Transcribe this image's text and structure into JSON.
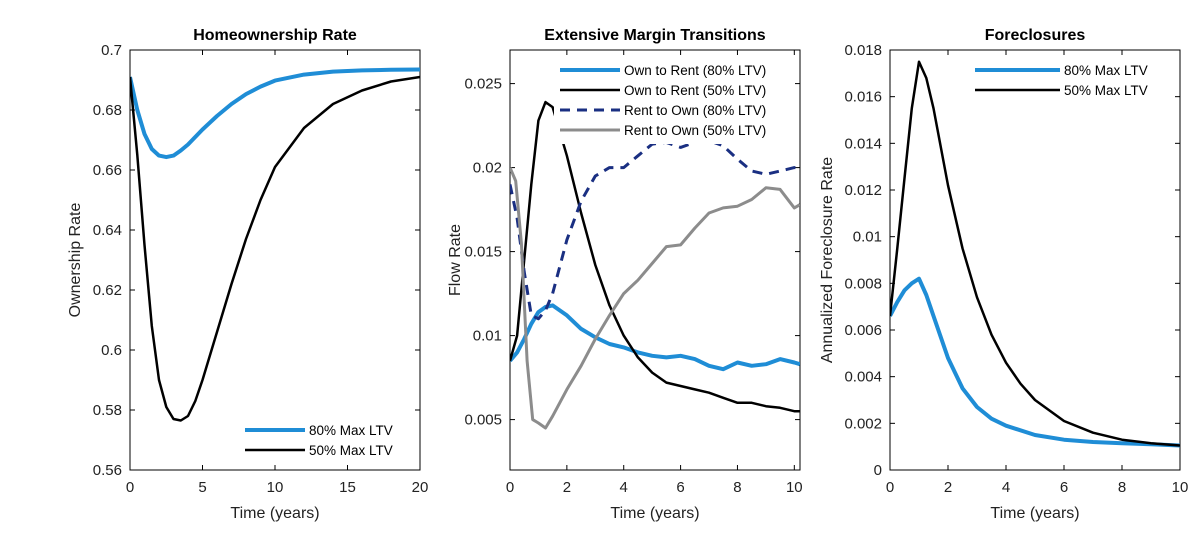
{
  "colors": {
    "blue": "#1f8dd6",
    "black": "#000000",
    "navy": "#1a2f82",
    "gray": "#8c8c8c"
  },
  "chart_data": [
    {
      "type": "line",
      "title": "Homeownership Rate",
      "xlabel": "Time (years)",
      "ylabel": "Ownership Rate",
      "xlim": [
        0,
        20
      ],
      "ylim": [
        0.56,
        0.7
      ],
      "xticks": [
        0,
        5,
        10,
        15,
        20
      ],
      "xtick_labels": [
        "0",
        "5",
        "10",
        "15",
        "20"
      ],
      "yticks": [
        0.56,
        0.58,
        0.6,
        0.62,
        0.64,
        0.66,
        0.68,
        0.7
      ],
      "ytick_labels": [
        "0.56",
        "0.58",
        "0.6",
        "0.62",
        "0.64",
        "0.66",
        "0.68",
        "0.7"
      ],
      "legend_position": "bottom-right",
      "series": [
        {
          "name": "80% Max LTV",
          "color": "#1f8dd6",
          "dash": "solid",
          "width": 4,
          "x": [
            0,
            0.5,
            1,
            1.5,
            2,
            2.5,
            3,
            3.5,
            4,
            5,
            6,
            7,
            8,
            9,
            10,
            12,
            14,
            16,
            18,
            20
          ],
          "y": [
            0.691,
            0.68,
            0.672,
            0.667,
            0.6648,
            0.6643,
            0.6648,
            0.6665,
            0.6685,
            0.6735,
            0.678,
            0.682,
            0.6853,
            0.6878,
            0.6898,
            0.6918,
            0.6928,
            0.6932,
            0.6934,
            0.6935
          ]
        },
        {
          "name": "50% Max LTV",
          "color": "#000000",
          "dash": "solid",
          "width": 2.5,
          "x": [
            0,
            0.5,
            1,
            1.5,
            2,
            2.5,
            3,
            3.5,
            4,
            4.5,
            5,
            6,
            7,
            8,
            9,
            10,
            12,
            14,
            16,
            18,
            20
          ],
          "y": [
            0.691,
            0.665,
            0.635,
            0.608,
            0.59,
            0.581,
            0.577,
            0.5765,
            0.578,
            0.583,
            0.59,
            0.606,
            0.622,
            0.637,
            0.65,
            0.661,
            0.674,
            0.682,
            0.6865,
            0.6895,
            0.691
          ]
        }
      ]
    },
    {
      "type": "line",
      "title": "Extensive Margin Transitions",
      "xlabel": "Time (years)",
      "ylabel": "Flow Rate",
      "xlim": [
        0,
        10.2
      ],
      "ylim": [
        0.002,
        0.027
      ],
      "xticks": [
        0,
        2,
        4,
        6,
        8,
        10
      ],
      "xtick_labels": [
        "0",
        "2",
        "4",
        "6",
        "8",
        "10"
      ],
      "yticks": [
        0.005,
        0.01,
        0.015,
        0.02,
        0.025
      ],
      "ytick_labels": [
        "0.005",
        "0.01",
        "0.015",
        "0.02",
        "0.025"
      ],
      "legend_position": "top-right",
      "series": [
        {
          "name": "Own to Rent (80% LTV)",
          "color": "#1f8dd6",
          "dash": "solid",
          "width": 4,
          "x": [
            0,
            0.25,
            0.5,
            0.75,
            1,
            1.25,
            1.5,
            2,
            2.5,
            3,
            3.5,
            4,
            4.5,
            5,
            5.5,
            6,
            6.5,
            7,
            7.5,
            8,
            8.5,
            9,
            9.5,
            10,
            10.2
          ],
          "y": [
            0.0085,
            0.009,
            0.0098,
            0.0107,
            0.0114,
            0.0117,
            0.0118,
            0.0112,
            0.0104,
            0.0099,
            0.0095,
            0.0093,
            0.009,
            0.0088,
            0.0087,
            0.0088,
            0.0086,
            0.0082,
            0.008,
            0.0084,
            0.0082,
            0.0083,
            0.0086,
            0.0084,
            0.0083
          ]
        },
        {
          "name": "Own to Rent (50% LTV)",
          "color": "#000000",
          "dash": "solid",
          "width": 2.5,
          "x": [
            0,
            0.25,
            0.5,
            0.75,
            1,
            1.25,
            1.5,
            2,
            2.5,
            3,
            3.5,
            4,
            4.5,
            5,
            5.5,
            6,
            6.5,
            7,
            7.5,
            8,
            8.5,
            9,
            9.5,
            10,
            10.2
          ],
          "y": [
            0.0085,
            0.01,
            0.0145,
            0.019,
            0.0228,
            0.0239,
            0.0236,
            0.0207,
            0.0173,
            0.0142,
            0.0118,
            0.01,
            0.0087,
            0.0078,
            0.0072,
            0.007,
            0.0068,
            0.0066,
            0.0063,
            0.006,
            0.006,
            0.0058,
            0.0057,
            0.0055,
            0.0055
          ]
        },
        {
          "name": "Rent to Own (80% LTV)",
          "color": "#1a2f82",
          "dash": "dashed",
          "width": 3,
          "x": [
            0,
            0.25,
            0.5,
            0.75,
            1,
            1.25,
            1.5,
            2,
            2.5,
            3,
            3.5,
            4,
            4.5,
            5,
            5.5,
            6,
            6.5,
            7,
            7.5,
            8,
            8.5,
            9,
            9.5,
            10,
            10.2
          ],
          "y": [
            0.019,
            0.017,
            0.0138,
            0.0112,
            0.011,
            0.0115,
            0.0125,
            0.0157,
            0.018,
            0.0195,
            0.02,
            0.02,
            0.0207,
            0.0214,
            0.0215,
            0.0212,
            0.0215,
            0.0216,
            0.0213,
            0.0205,
            0.0198,
            0.0196,
            0.0198,
            0.02,
            0.02
          ]
        },
        {
          "name": "Rent to Own (50% LTV)",
          "color": "#8c8c8c",
          "dash": "solid",
          "width": 3,
          "x": [
            0,
            0.2,
            0.4,
            0.6,
            0.8,
            1,
            1.25,
            1.5,
            2,
            2.5,
            3,
            3.5,
            4,
            4.5,
            5,
            5.5,
            6,
            6.5,
            7,
            7.5,
            8,
            8.5,
            9,
            9.5,
            10,
            10.2
          ],
          "y": [
            0.02,
            0.0192,
            0.0155,
            0.0085,
            0.005,
            0.0048,
            0.0045,
            0.0052,
            0.0068,
            0.0082,
            0.0098,
            0.0112,
            0.0125,
            0.0133,
            0.0143,
            0.0153,
            0.0154,
            0.0164,
            0.0173,
            0.0176,
            0.0177,
            0.0181,
            0.0188,
            0.0187,
            0.0176,
            0.0178
          ]
        }
      ]
    },
    {
      "type": "line",
      "title": "Foreclosures",
      "xlabel": "Time (years)",
      "ylabel": "Annualized Foreclosure Rate",
      "xlim": [
        0,
        10
      ],
      "ylim": [
        0,
        0.018
      ],
      "xticks": [
        0,
        2,
        4,
        6,
        8,
        10
      ],
      "xtick_labels": [
        "0",
        "2",
        "4",
        "6",
        "8",
        "10"
      ],
      "yticks": [
        0,
        0.002,
        0.004,
        0.006,
        0.008,
        0.01,
        0.012,
        0.014,
        0.016,
        0.018
      ],
      "ytick_labels": [
        "0",
        "0.002",
        "0.004",
        "0.006",
        "0.008",
        "0.01",
        "0.012",
        "0.014",
        "0.016",
        "0.018"
      ],
      "legend_position": "top-right",
      "series": [
        {
          "name": "80% Max LTV",
          "color": "#1f8dd6",
          "dash": "solid",
          "width": 4,
          "x": [
            0,
            0.25,
            0.5,
            0.75,
            1,
            1.25,
            1.5,
            2,
            2.5,
            3,
            3.5,
            4,
            5,
            6,
            7,
            8,
            9,
            10
          ],
          "y": [
            0.0066,
            0.0072,
            0.0077,
            0.008,
            0.0082,
            0.0075,
            0.0066,
            0.0048,
            0.0035,
            0.0027,
            0.0022,
            0.0019,
            0.0015,
            0.0013,
            0.0012,
            0.00115,
            0.0011,
            0.00105
          ]
        },
        {
          "name": "50% Max LTV",
          "color": "#000000",
          "dash": "solid",
          "width": 2.5,
          "x": [
            0,
            0.25,
            0.5,
            0.75,
            1,
            1.25,
            1.5,
            2,
            2.5,
            3,
            3.5,
            4,
            4.5,
            5,
            6,
            7,
            8,
            9,
            10
          ],
          "y": [
            0.0066,
            0.0095,
            0.0125,
            0.0155,
            0.0175,
            0.0168,
            0.0155,
            0.0122,
            0.0095,
            0.0074,
            0.0058,
            0.0046,
            0.0037,
            0.003,
            0.0021,
            0.0016,
            0.0013,
            0.00115,
            0.00105
          ]
        }
      ]
    }
  ]
}
